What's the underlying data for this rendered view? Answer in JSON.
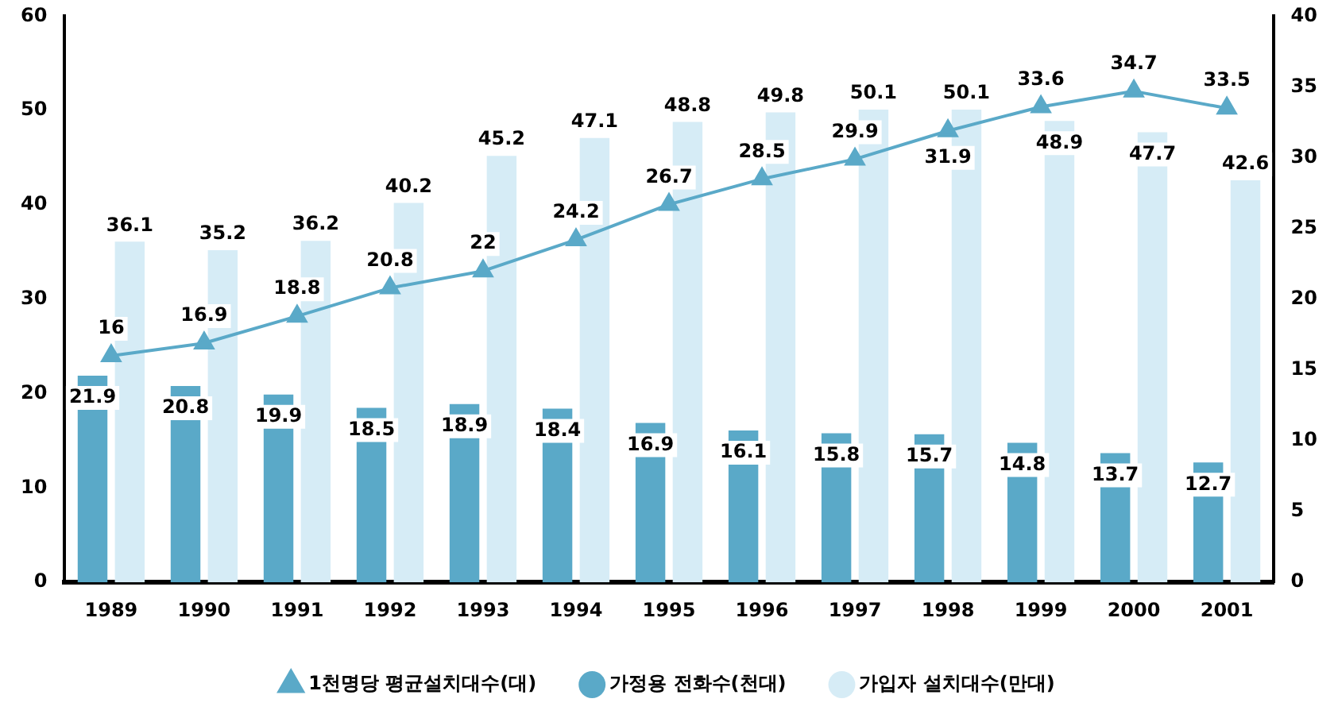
{
  "chart_data": {
    "type": "bar",
    "categories": [
      "1989",
      "1990",
      "1991",
      "1992",
      "1993",
      "1994",
      "1995",
      "1996",
      "1997",
      "1998",
      "1999",
      "2000",
      "2001"
    ],
    "series": [
      {
        "name": "가정용 전화수(천대)",
        "color": "#5aa9c8",
        "values": [
          21.9,
          20.8,
          19.9,
          18.5,
          18.9,
          18.4,
          16.9,
          16.1,
          15.8,
          15.7,
          14.8,
          13.7,
          12.7
        ]
      },
      {
        "name": "가입자 설치대수(만대)",
        "color": "#d6ecf6",
        "values": [
          36.1,
          35.2,
          36.2,
          40.2,
          45.2,
          47.1,
          48.8,
          49.8,
          50.1,
          50.1,
          48.9,
          47.7,
          42.6
        ]
      },
      {
        "name": "1천명당 평균설치대수(대)",
        "type": "line",
        "axis": "y2",
        "color": "#5aa9c8",
        "marker": "triangle",
        "values": [
          16,
          16.9,
          18.8,
          20.8,
          22.0,
          24.2,
          26.7,
          28.5,
          29.9,
          31.9,
          33.6,
          34.7,
          33.5
        ]
      }
    ],
    "ylim": [
      0,
      60
    ],
    "yticks": [
      0,
      10,
      20,
      30,
      40,
      50,
      60
    ],
    "y2lim": [
      0,
      40
    ],
    "y2ticks": [
      0,
      5,
      10,
      15,
      20,
      25,
      30,
      35,
      40
    ],
    "data_labels": true,
    "grid": false,
    "legend": "bottom"
  }
}
